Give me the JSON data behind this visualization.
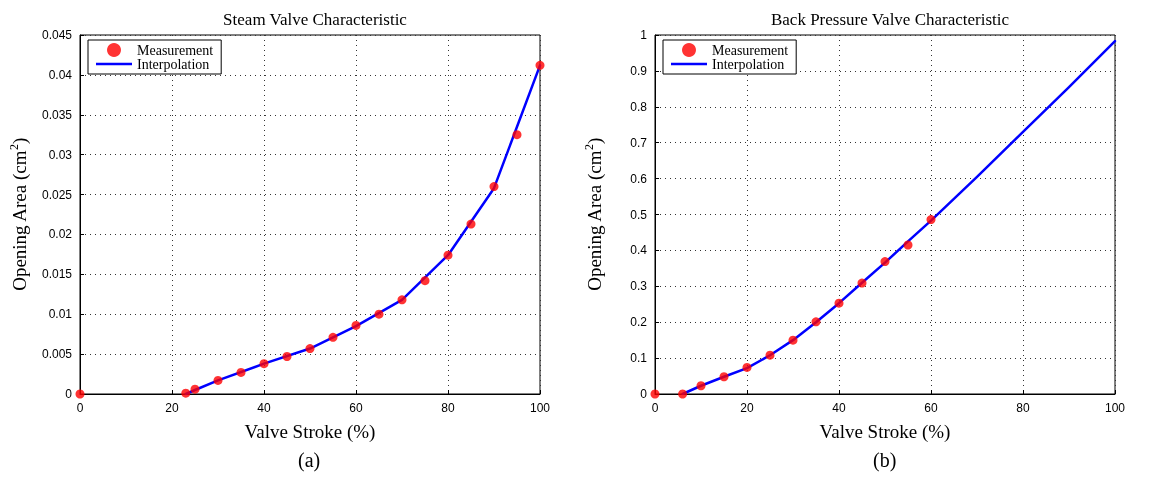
{
  "chart_data": [
    {
      "type": "line",
      "title": "Steam Valve Characteristic",
      "xlabel": "Valve Stroke (%)",
      "ylabel": "Opening Area (cm$^{2}$)",
      "annotations": [
        "(a)"
      ],
      "legend": "top left",
      "grid": true,
      "xlim": [
        0,
        100
      ],
      "xticks": [
        0,
        20,
        40,
        60,
        80,
        100
      ],
      "ylim": [
        0,
        0.045
      ],
      "yticks": [
        0,
        0.005,
        0.01,
        0.015,
        0.02,
        0.025,
        0.03,
        0.035,
        0.04,
        0.045
      ],
      "series": [
        {
          "name": "Measurement",
          "type": "scatter",
          "marker": "circle",
          "color": "#ff0000",
          "x": [
            0,
            23,
            25,
            30,
            35,
            40,
            45,
            50,
            55,
            60,
            65,
            70,
            75,
            80,
            85,
            90,
            95,
            100
          ],
          "values": [
            0,
            0.0001,
            0.0006,
            0.0017,
            0.0027,
            0.0038,
            0.0047,
            0.0057,
            0.0071,
            0.0086,
            0.01,
            0.0118,
            0.0142,
            0.0174,
            0.0213,
            0.026,
            0.0325,
            0.0412
          ]
        },
        {
          "name": "Interpolation",
          "type": "line",
          "marker": "none",
          "color": "#0000ff",
          "x": [
            23,
            25,
            30,
            40,
            50,
            60,
            70,
            80,
            90,
            95,
            100
          ],
          "values": [
            0,
            0.0005,
            0.0017,
            0.0038,
            0.0057,
            0.0085,
            0.0118,
            0.0174,
            0.0258,
            0.0335,
            0.0412
          ]
        }
      ]
    },
    {
      "type": "line",
      "title": "Back Pressure Valve Characteristic",
      "xlabel": "Valve Stroke (%)",
      "ylabel": "Opening Area (cm$^{2}$)",
      "annotations": [
        "(b)"
      ],
      "legend": "top left",
      "grid": true,
      "xlim": [
        0,
        100
      ],
      "xticks": [
        0,
        20,
        40,
        60,
        80,
        100
      ],
      "ylim": [
        0,
        1
      ],
      "yticks": [
        0,
        0.1,
        0.2,
        0.3,
        0.4,
        0.5,
        0.6,
        0.7,
        0.8,
        0.9,
        1
      ],
      "series": [
        {
          "name": "Measurement",
          "type": "scatter",
          "marker": "circle",
          "color": "#ff0000",
          "x": [
            0,
            6,
            10,
            15,
            20,
            25,
            30,
            35,
            40,
            45,
            50,
            55,
            60
          ],
          "values": [
            0,
            0,
            0.023,
            0.048,
            0.074,
            0.108,
            0.15,
            0.201,
            0.253,
            0.309,
            0.369,
            0.415,
            0.486
          ]
        },
        {
          "name": "Interpolation",
          "type": "line",
          "marker": "none",
          "color": "#0000ff",
          "x": [
            6,
            10,
            15,
            20,
            25,
            30,
            35,
            40,
            45,
            50,
            55,
            60,
            70,
            80,
            90,
            100
          ],
          "values": [
            0,
            0.023,
            0.048,
            0.072,
            0.108,
            0.15,
            0.2,
            0.253,
            0.31,
            0.366,
            0.425,
            0.483,
            0.605,
            0.73,
            0.855,
            0.983
          ]
        }
      ]
    }
  ]
}
